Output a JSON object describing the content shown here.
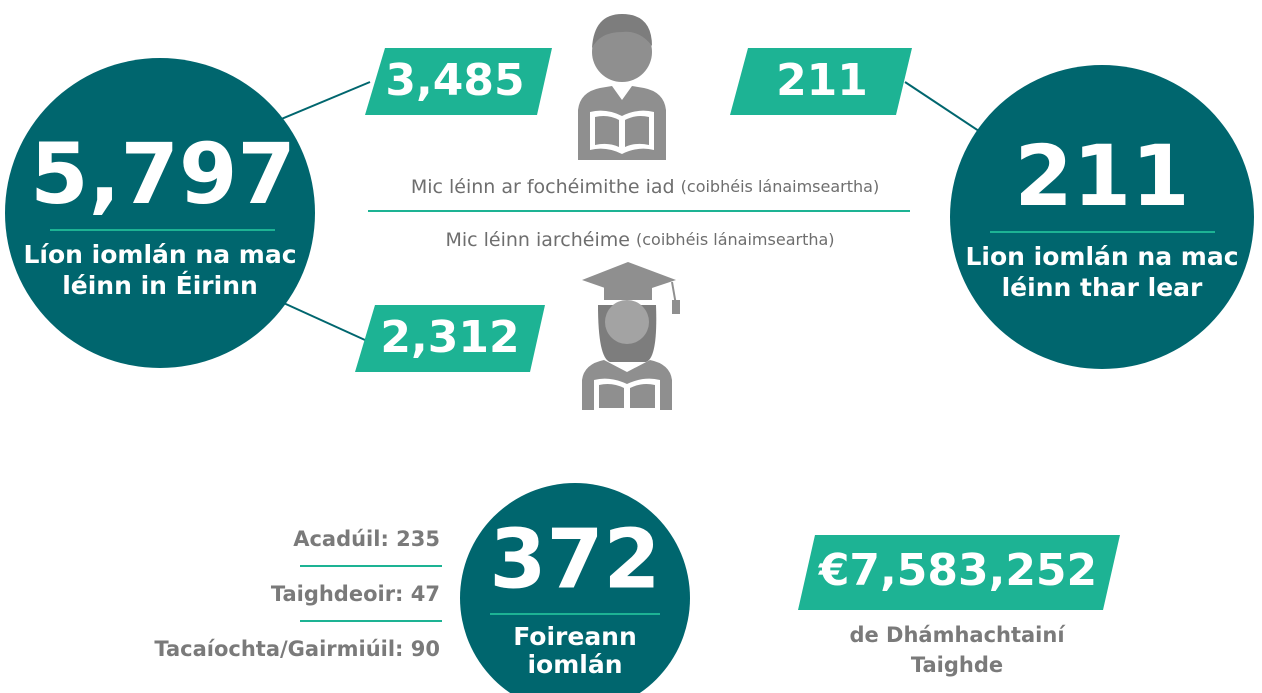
{
  "ireland": {
    "value": "5,797",
    "label": [
      "Líon iomlán na mac",
      "léinn in Éirinn"
    ]
  },
  "abroad": {
    "value": "211",
    "label": [
      "Lion iomlán na mac",
      "léinn thar lear"
    ]
  },
  "undergraduate": {
    "value": "3,485",
    "label": "Mic léinn ar fochéimithe iad",
    "note": "(coibhéis lánaimseartha)"
  },
  "abroad_box": {
    "value": "211"
  },
  "postgraduate": {
    "value": "2,312",
    "label": "Mic léinn iarchéime",
    "note": "(coibhéis lánaimseartha)"
  },
  "staff": {
    "value": "372",
    "label": [
      "Foireann",
      "iomlán"
    ],
    "breakdown": [
      "Acadúil: 235",
      "Taighdeoir: 47",
      "Tacaíochta/Gairmiúil: 90"
    ]
  },
  "research": {
    "value": "€7,583,252",
    "label": [
      "de Dhámhachtainí",
      "Taighde"
    ]
  }
}
